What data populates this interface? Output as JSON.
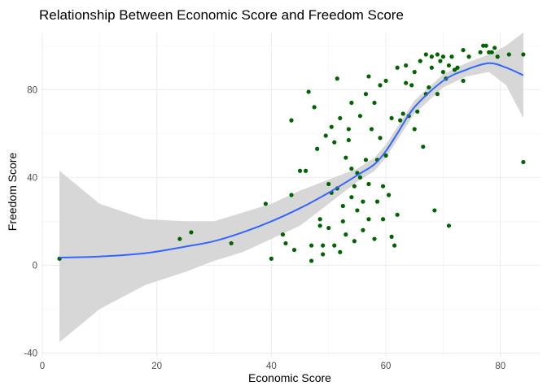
{
  "chart_data": {
    "type": "scatter",
    "title": "Relationship Between Economic Score and Freedom Score",
    "xlabel": "Economic Score",
    "ylabel": "Freedom Score",
    "xlim": [
      0,
      87
    ],
    "ylim": [
      -42,
      106
    ],
    "x_ticks": [
      0,
      20,
      40,
      60,
      80
    ],
    "y_ticks": [
      -40,
      0,
      40,
      80
    ],
    "grid": true,
    "legend": "none",
    "point_color": "#006400",
    "smooth_color": "#3366FF",
    "band_color": "#d3d3d3",
    "points": [
      {
        "x": 3,
        "y": 3
      },
      {
        "x": 24,
        "y": 12
      },
      {
        "x": 26,
        "y": 15
      },
      {
        "x": 33,
        "y": 10
      },
      {
        "x": 39,
        "y": 28
      },
      {
        "x": 40,
        "y": 3
      },
      {
        "x": 42,
        "y": 14
      },
      {
        "x": 42.5,
        "y": 10
      },
      {
        "x": 43.5,
        "y": 32
      },
      {
        "x": 43.5,
        "y": 66
      },
      {
        "x": 44,
        "y": 7
      },
      {
        "x": 45,
        "y": 43
      },
      {
        "x": 46,
        "y": 43
      },
      {
        "x": 46.5,
        "y": 79
      },
      {
        "x": 47,
        "y": 2
      },
      {
        "x": 47,
        "y": 9
      },
      {
        "x": 47.5,
        "y": 72
      },
      {
        "x": 48,
        "y": 53
      },
      {
        "x": 48.5,
        "y": 18
      },
      {
        "x": 48.5,
        "y": 21
      },
      {
        "x": 49,
        "y": 5
      },
      {
        "x": 49,
        "y": 9
      },
      {
        "x": 49.5,
        "y": 59
      },
      {
        "x": 50,
        "y": 17
      },
      {
        "x": 50,
        "y": 37
      },
      {
        "x": 50.5,
        "y": 33
      },
      {
        "x": 50.5,
        "y": 63
      },
      {
        "x": 51,
        "y": 9
      },
      {
        "x": 51,
        "y": 56
      },
      {
        "x": 51.5,
        "y": 85
      },
      {
        "x": 51.5,
        "y": 35
      },
      {
        "x": 52,
        "y": 67
      },
      {
        "x": 52,
        "y": 6
      },
      {
        "x": 52.5,
        "y": 27
      },
      {
        "x": 52.5,
        "y": 20
      },
      {
        "x": 53,
        "y": 49
      },
      {
        "x": 53,
        "y": 14
      },
      {
        "x": 53.5,
        "y": 57
      },
      {
        "x": 53.5,
        "y": 62
      },
      {
        "x": 54,
        "y": 74
      },
      {
        "x": 54,
        "y": 44
      },
      {
        "x": 54,
        "y": 31
      },
      {
        "x": 54.5,
        "y": 36
      },
      {
        "x": 54.5,
        "y": 11
      },
      {
        "x": 55,
        "y": 42
      },
      {
        "x": 55,
        "y": 25
      },
      {
        "x": 55.5,
        "y": 68
      },
      {
        "x": 55.5,
        "y": 40
      },
      {
        "x": 56,
        "y": 16
      },
      {
        "x": 56,
        "y": 29
      },
      {
        "x": 56.5,
        "y": 78
      },
      {
        "x": 56.5,
        "y": 48
      },
      {
        "x": 57,
        "y": 86
      },
      {
        "x": 57,
        "y": 37
      },
      {
        "x": 57,
        "y": 21
      },
      {
        "x": 57.5,
        "y": 62
      },
      {
        "x": 58,
        "y": 74
      },
      {
        "x": 58,
        "y": 12
      },
      {
        "x": 58.5,
        "y": 48
      },
      {
        "x": 58.5,
        "y": 29
      },
      {
        "x": 59,
        "y": 58
      },
      {
        "x": 59,
        "y": 82
      },
      {
        "x": 59.5,
        "y": 36
      },
      {
        "x": 59.5,
        "y": 21
      },
      {
        "x": 60,
        "y": 84
      },
      {
        "x": 60,
        "y": 50
      },
      {
        "x": 60.5,
        "y": 32
      },
      {
        "x": 61,
        "y": 67
      },
      {
        "x": 61,
        "y": 13
      },
      {
        "x": 61.5,
        "y": 9
      },
      {
        "x": 62,
        "y": 23
      },
      {
        "x": 62,
        "y": 90
      },
      {
        "x": 62.5,
        "y": 66
      },
      {
        "x": 63,
        "y": 69
      },
      {
        "x": 63.5,
        "y": 83
      },
      {
        "x": 63.5,
        "y": 91
      },
      {
        "x": 64,
        "y": 68
      },
      {
        "x": 64.5,
        "y": 82
      },
      {
        "x": 65,
        "y": 62
      },
      {
        "x": 65,
        "y": 88
      },
      {
        "x": 65.5,
        "y": 70
      },
      {
        "x": 66,
        "y": 93
      },
      {
        "x": 66.5,
        "y": 54
      },
      {
        "x": 67,
        "y": 96
      },
      {
        "x": 67,
        "y": 78
      },
      {
        "x": 67.5,
        "y": 81
      },
      {
        "x": 68,
        "y": 95
      },
      {
        "x": 68,
        "y": 90
      },
      {
        "x": 68.5,
        "y": 25
      },
      {
        "x": 69,
        "y": 96
      },
      {
        "x": 69,
        "y": 78
      },
      {
        "x": 69.5,
        "y": 93
      },
      {
        "x": 70,
        "y": 88
      },
      {
        "x": 70,
        "y": 95
      },
      {
        "x": 70.5,
        "y": 85
      },
      {
        "x": 71,
        "y": 18
      },
      {
        "x": 71,
        "y": 91
      },
      {
        "x": 71.5,
        "y": 95
      },
      {
        "x": 72,
        "y": 89
      },
      {
        "x": 72.5,
        "y": 90
      },
      {
        "x": 73.5,
        "y": 98
      },
      {
        "x": 73.5,
        "y": 84
      },
      {
        "x": 74.5,
        "y": 95
      },
      {
        "x": 76.5,
        "y": 97
      },
      {
        "x": 77,
        "y": 100
      },
      {
        "x": 77.5,
        "y": 100
      },
      {
        "x": 78,
        "y": 97
      },
      {
        "x": 78.5,
        "y": 97
      },
      {
        "x": 79,
        "y": 99
      },
      {
        "x": 79.5,
        "y": 95
      },
      {
        "x": 81.5,
        "y": 96
      },
      {
        "x": 84,
        "y": 96
      },
      {
        "x": 84,
        "y": 47
      }
    ],
    "smooth_line": {
      "x": [
        3,
        10,
        18,
        25,
        30,
        35,
        40,
        45,
        50,
        55,
        58,
        60,
        62,
        65,
        70,
        74,
        78,
        81,
        84
      ],
      "y": [
        3.5,
        4,
        5.5,
        8.5,
        11,
        15,
        20,
        26,
        33,
        41,
        46,
        52,
        60,
        72,
        84,
        89,
        92,
        90,
        86.5
      ],
      "lower": [
        -35,
        -20,
        -9,
        -3,
        2,
        6,
        12,
        18,
        28,
        38,
        43,
        49,
        57,
        69,
        81,
        86,
        88,
        82,
        67
      ],
      "upper": [
        43,
        28,
        21,
        20,
        20,
        24,
        28,
        34,
        39,
        44,
        49,
        55,
        63,
        75,
        87,
        92,
        96,
        100,
        106
      ]
    }
  }
}
